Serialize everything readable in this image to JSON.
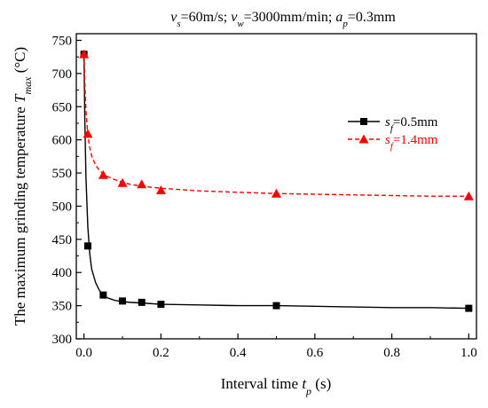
{
  "chart_data": {
    "type": "line",
    "title": "v_s=60m/s; v_w=3000mm/min; a_p=0.3mm",
    "title_parts": [
      {
        "text": "v",
        "style": "italic"
      },
      {
        "text": "s",
        "style": "sub"
      },
      {
        "text": "=60m/s; ",
        "style": "normal"
      },
      {
        "text": "v",
        "style": "italic"
      },
      {
        "text": "w",
        "style": "sub"
      },
      {
        "text": "=3000mm/min; ",
        "style": "normal"
      },
      {
        "text": "a",
        "style": "italic"
      },
      {
        "text": "p",
        "style": "sub"
      },
      {
        "text": "=0.3mm",
        "style": "normal"
      }
    ],
    "xlabel": "Interval time t_p (s)",
    "xlabel_parts": [
      {
        "text": "Interval time ",
        "style": "normal"
      },
      {
        "text": "t",
        "style": "italic"
      },
      {
        "text": "p",
        "style": "sub"
      },
      {
        "text": " (s)",
        "style": "normal"
      }
    ],
    "ylabel": "The maximum grinding temperature T_max (°C)",
    "ylabel_parts": [
      {
        "text": "The maximum grinding temperature ",
        "style": "normal"
      },
      {
        "text": "T",
        "style": "italic"
      },
      {
        "text": "max",
        "style": "sub"
      },
      {
        "text": " (°C)",
        "style": "normal"
      }
    ],
    "xlim": [
      -0.02,
      1.02
    ],
    "ylim": [
      300,
      760
    ],
    "xticks": [
      "0.0",
      "0.2",
      "0.4",
      "0.6",
      "0.8",
      "1.0"
    ],
    "yticks": [
      "300",
      "350",
      "400",
      "450",
      "500",
      "550",
      "600",
      "650",
      "700",
      "750"
    ],
    "grid": false,
    "legend_position": "right",
    "series": [
      {
        "name": "s_f=0.5mm",
        "name_parts": [
          {
            "text": "s",
            "style": "italic"
          },
          {
            "text": "f",
            "style": "sub"
          },
          {
            "text": "=0.5mm",
            "style": "normal"
          }
        ],
        "color": "#000000",
        "marker": "square",
        "line": "solid",
        "x": [
          0,
          0.01,
          0.05,
          0.1,
          0.15,
          0.2,
          0.5,
          1.0
        ],
        "y": [
          729,
          440,
          366,
          357,
          355,
          352,
          350,
          346
        ],
        "fit_x": [
          0,
          0.002,
          0.005,
          0.01,
          0.015,
          0.02,
          0.03,
          0.04,
          0.05,
          0.06,
          0.08,
          0.1,
          0.12,
          0.15,
          0.2,
          0.3,
          0.4,
          0.5,
          0.6,
          0.7,
          0.8,
          0.9,
          1.0
        ],
        "fit_y": [
          729,
          635,
          545,
          468,
          428,
          405,
          385,
          373,
          366,
          362,
          358,
          356,
          355,
          354,
          352,
          351,
          350,
          350,
          349,
          348,
          347,
          347,
          346
        ]
      },
      {
        "name": "s_f=1.4mm",
        "name_parts": [
          {
            "text": "s",
            "style": "italic"
          },
          {
            "text": "f",
            "style": "sub"
          },
          {
            "text": "=1.4mm",
            "style": "normal"
          }
        ],
        "color": "#ff0000",
        "marker": "triangle",
        "line": "dashed",
        "x": [
          0,
          0.01,
          0.05,
          0.1,
          0.15,
          0.2,
          0.5,
          1.0
        ],
        "y": [
          729,
          609,
          547,
          535,
          533,
          524,
          519,
          515
        ],
        "fit_x": [
          0,
          0.002,
          0.005,
          0.01,
          0.015,
          0.02,
          0.03,
          0.04,
          0.05,
          0.06,
          0.08,
          0.1,
          0.12,
          0.15,
          0.2,
          0.3,
          0.4,
          0.5,
          0.6,
          0.7,
          0.8,
          0.9,
          1.0
        ],
        "fit_y": [
          729,
          690,
          645,
          607,
          588,
          576,
          562,
          554,
          549,
          545,
          540,
          536,
          533,
          530,
          527,
          523,
          521,
          519,
          518,
          517,
          516,
          515,
          515
        ]
      }
    ]
  }
}
